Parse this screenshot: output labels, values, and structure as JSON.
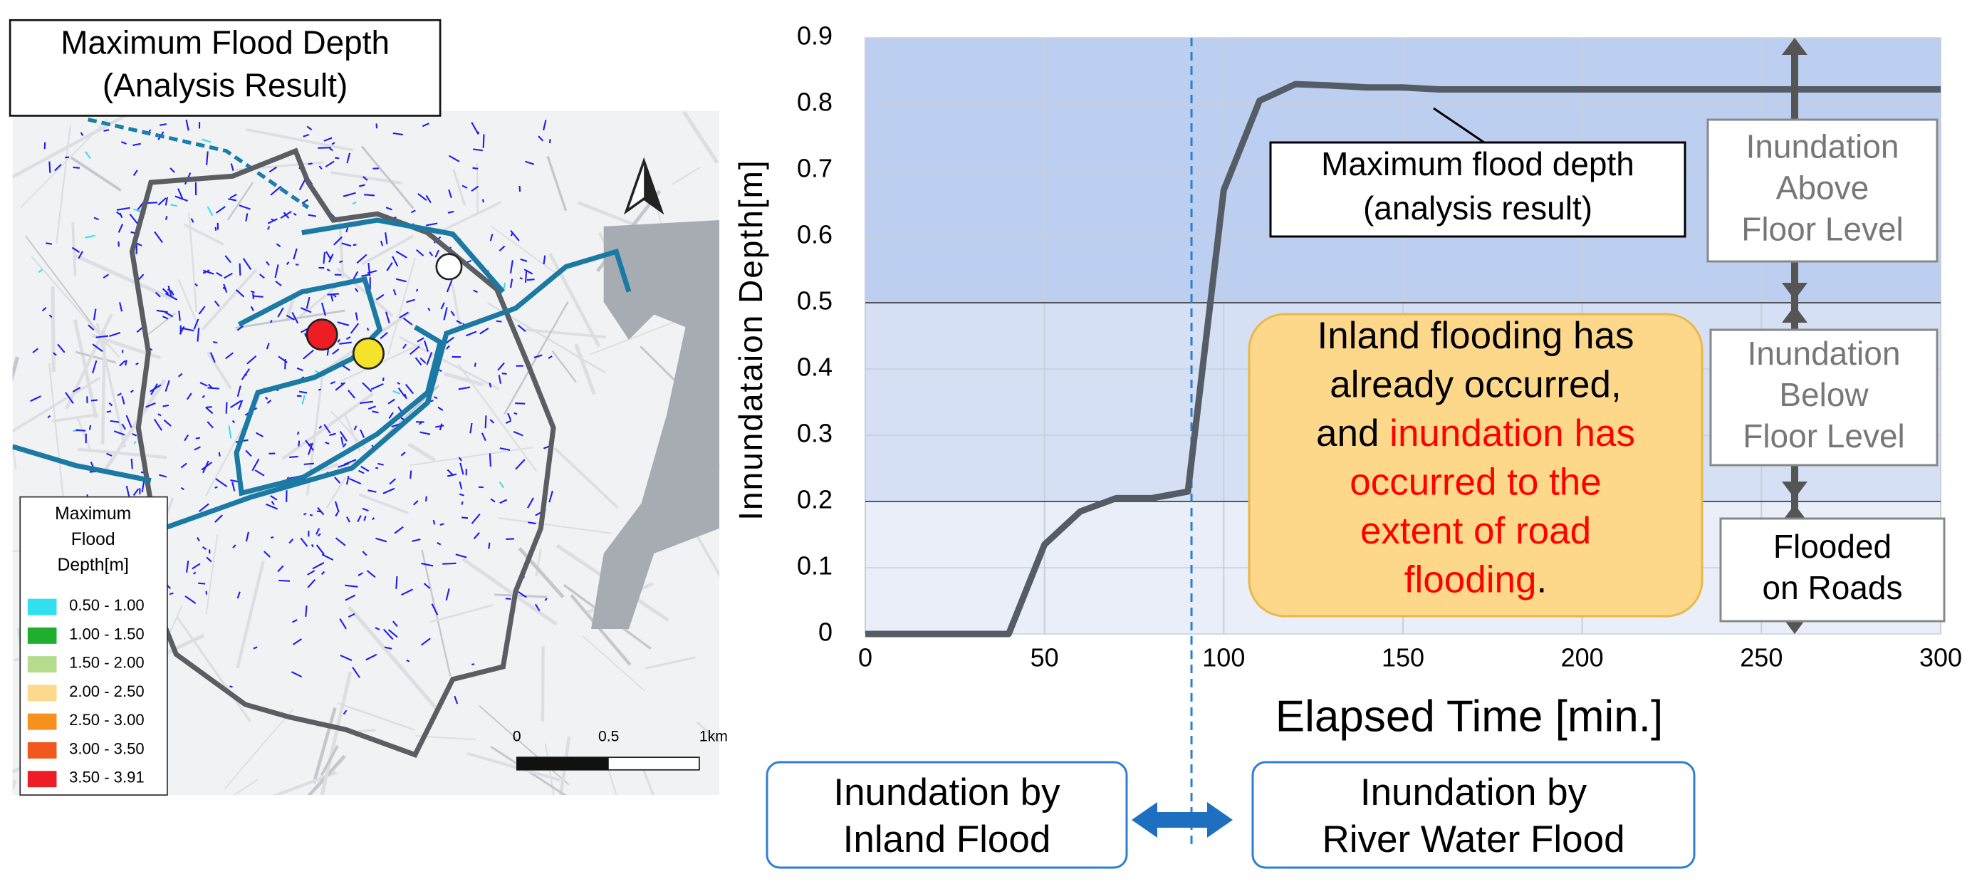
{
  "map": {
    "title": [
      "Maximum Flood Depth",
      "(Analysis Result)"
    ],
    "legend": {
      "title": [
        "Maximum",
        "Flood",
        "Depth[m]"
      ],
      "entries": [
        {
          "label": "0.50 - 1.00",
          "color": "#33e0f0"
        },
        {
          "label": "1.00 - 1.50",
          "color": "#1fae2e"
        },
        {
          "label": "1.50 - 2.00",
          "color": "#b3dc8c"
        },
        {
          "label": "2.00 - 2.50",
          "color": "#fcd98c"
        },
        {
          "label": "2.50 - 3.00",
          "color": "#f7911e"
        },
        {
          "label": "3.00 - 3.50",
          "color": "#f2581e"
        },
        {
          "label": "3.50 - 3.91",
          "color": "#ee1c24"
        }
      ]
    },
    "scale": [
      "0",
      "0.5",
      "1km"
    ]
  },
  "chart_data": {
    "type": "line",
    "x_label": "Elapsed Time [min.]",
    "y_label": "Innundataion Depth[m]",
    "x": [
      0,
      40,
      50,
      60,
      70,
      80,
      90,
      100,
      110,
      120,
      130,
      140,
      150,
      160,
      300
    ],
    "series": [
      {
        "color": "#555c66",
        "values": [
          0,
          0,
          0.135,
          0.185,
          0.205,
          0.205,
          0.215,
          0.67,
          0.805,
          0.83,
          0.828,
          0.825,
          0.825,
          0.822,
          0.822
        ]
      }
    ],
    "callout": [
      "Maximum flood depth",
      "(analysis result)"
    ],
    "xlim": [
      0,
      300
    ],
    "ylim": [
      0,
      0.9
    ],
    "xticks": [
      0,
      50,
      100,
      150,
      200,
      250,
      300
    ],
    "yticks": [
      0,
      0.1,
      0.2,
      0.3,
      0.4,
      0.5,
      0.6,
      0.7,
      0.8,
      0.9
    ],
    "grid": true,
    "vline": 91,
    "bands": [
      {
        "from": 0,
        "to": 0.2,
        "color": "#e9eef9",
        "label": [
          "Flooded",
          "on Roads"
        ],
        "label_color": "#000000"
      },
      {
        "from": 0.2,
        "to": 0.5,
        "color": "#d5e0f4",
        "label": [
          "Inundation",
          "Below",
          "Floor Level"
        ],
        "label_color": "#777777"
      },
      {
        "from": 0.5,
        "to": 0.9,
        "color": "#bccff0",
        "label": [
          "Inundation",
          "Above",
          "Floor Level"
        ],
        "label_color": "#777777"
      }
    ],
    "note": [
      [
        {
          "text": "Inland flooding has",
          "color": "#000000"
        }
      ],
      [
        {
          "text": "already occurred,",
          "color": "#000000"
        }
      ],
      [
        {
          "text": "and ",
          "color": "#000000"
        },
        {
          "text": "inundation has",
          "color": "#ff0000"
        }
      ],
      [
        {
          "text": "occurred to the",
          "color": "#ff0000"
        }
      ],
      [
        {
          "text": "extent of road",
          "color": "#ff0000"
        }
      ],
      [
        {
          "text": "flooding",
          "color": "#ff0000"
        },
        {
          "text": ".",
          "color": "#000000"
        }
      ]
    ]
  },
  "phases": [
    [
      "Inundation by",
      "Inland Flood"
    ],
    [
      "Inundation by",
      "River Water Flood"
    ]
  ]
}
